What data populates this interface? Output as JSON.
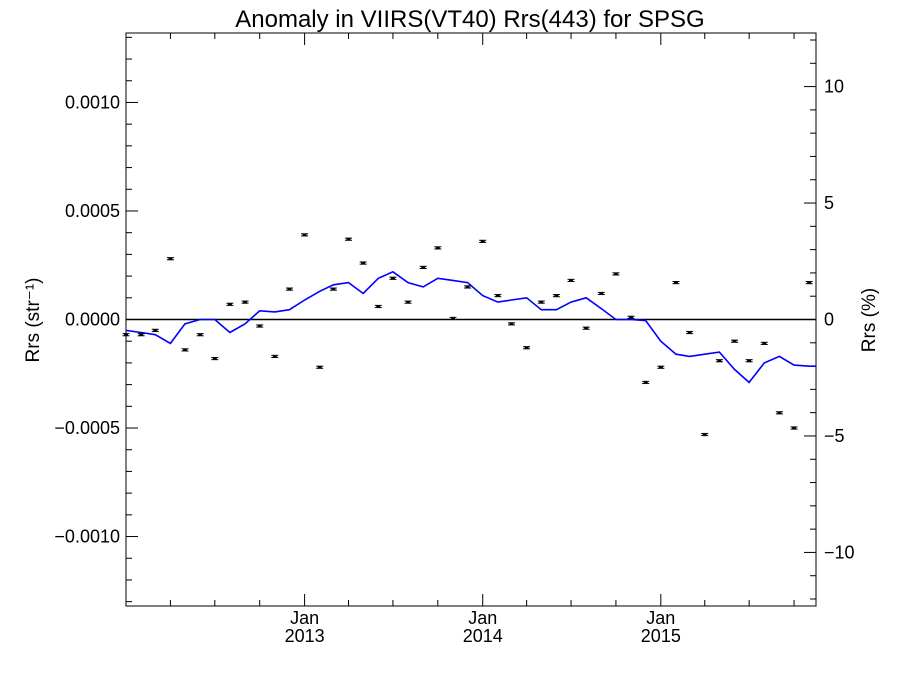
{
  "chart_data": {
    "type": "line",
    "title": "Anomaly in VIIRS(VT40) Rrs(443) for SPSG",
    "ylabel_left": "Rrs (str⁻¹)",
    "ylabel_right": "Rrs (%)",
    "x_ticks": [
      {
        "date": "2013-01-01",
        "top": "Jan",
        "bottom": "2013"
      },
      {
        "date": "2014-01-01",
        "top": "Jan",
        "bottom": "2014"
      },
      {
        "date": "2015-01-01",
        "top": "Jan",
        "bottom": "2015"
      }
    ],
    "x_range": [
      "2012-01-01",
      "2015-11-15"
    ],
    "ylim_left": [
      -0.00132,
      0.00132
    ],
    "y_ticks_left": [
      {
        "value": 0.001,
        "label": "0.0010"
      },
      {
        "value": 0.0005,
        "label": "0.0005"
      },
      {
        "value": 0.0,
        "label": "0.0000"
      },
      {
        "value": -0.0005,
        "label": "−0.0005"
      },
      {
        "value": -0.001,
        "label": "−0.0010"
      }
    ],
    "ylim_right": [
      -12.3,
      12.3
    ],
    "y_ticks_right": [
      {
        "value": 10,
        "label": "10"
      },
      {
        "value": 5,
        "label": "5"
      },
      {
        "value": 0,
        "label": "0"
      },
      {
        "value": -5,
        "label": "−5"
      },
      {
        "value": -10,
        "label": "−10"
      }
    ],
    "zero_line": true,
    "grid": false,
    "series": [
      {
        "kind": "line",
        "color": "#0000ff",
        "points": [
          [
            "2012-01-01",
            -5e-05
          ],
          [
            "2012-02-01",
            -6e-05
          ],
          [
            "2012-03-01",
            -7e-05
          ],
          [
            "2012-04-01",
            -0.00011
          ],
          [
            "2012-05-01",
            -2e-05
          ],
          [
            "2012-06-01",
            0.0
          ],
          [
            "2012-07-01",
            0.0
          ],
          [
            "2012-08-01",
            -6e-05
          ],
          [
            "2012-09-01",
            -2e-05
          ],
          [
            "2012-10-01",
            4e-05
          ],
          [
            "2012-11-01",
            3.5e-05
          ],
          [
            "2012-12-01",
            4.5e-05
          ],
          [
            "2013-01-01",
            9e-05
          ],
          [
            "2013-02-01",
            0.00013
          ],
          [
            "2013-03-01",
            0.00016
          ],
          [
            "2013-04-01",
            0.00017
          ],
          [
            "2013-05-01",
            0.00012
          ],
          [
            "2013-06-01",
            0.00019
          ],
          [
            "2013-07-01",
            0.00022
          ],
          [
            "2013-08-01",
            0.00017
          ],
          [
            "2013-09-01",
            0.00015
          ],
          [
            "2013-10-01",
            0.00019
          ],
          [
            "2013-11-01",
            0.00018
          ],
          [
            "2013-12-01",
            0.00017
          ],
          [
            "2014-01-01",
            0.00011
          ],
          [
            "2014-02-01",
            8e-05
          ],
          [
            "2014-03-01",
            9e-05
          ],
          [
            "2014-04-01",
            0.0001
          ],
          [
            "2014-05-01",
            4.5e-05
          ],
          [
            "2014-06-01",
            4.5e-05
          ],
          [
            "2014-07-01",
            8e-05
          ],
          [
            "2014-08-01",
            0.0001
          ],
          [
            "2014-09-01",
            5e-05
          ],
          [
            "2014-10-01",
            0.0
          ],
          [
            "2014-11-01",
            0.0
          ],
          [
            "2014-12-01",
            -5e-06
          ],
          [
            "2015-01-01",
            -0.0001
          ],
          [
            "2015-02-01",
            -0.00016
          ],
          [
            "2015-03-01",
            -0.00017
          ],
          [
            "2015-04-01",
            -0.00016
          ],
          [
            "2015-05-01",
            -0.00015
          ],
          [
            "2015-06-01",
            -0.00023
          ],
          [
            "2015-07-01",
            -0.00029
          ],
          [
            "2015-08-01",
            -0.0002
          ],
          [
            "2015-09-01",
            -0.00017
          ],
          [
            "2015-10-01",
            -0.00021
          ],
          [
            "2015-11-01",
            -0.000215
          ],
          [
            "2015-11-15",
            -0.000215
          ]
        ]
      },
      {
        "kind": "points_with_error",
        "color": "#000000",
        "error": 5e-06,
        "points": [
          [
            "2012-01-01",
            -7e-05
          ],
          [
            "2012-02-01",
            -7e-05
          ],
          [
            "2012-03-01",
            -5e-05
          ],
          [
            "2012-04-01",
            0.00028
          ],
          [
            "2012-05-01",
            -0.00014
          ],
          [
            "2012-06-01",
            -7e-05
          ],
          [
            "2012-07-01",
            -0.00018
          ],
          [
            "2012-08-01",
            7e-05
          ],
          [
            "2012-09-01",
            8e-05
          ],
          [
            "2012-10-01",
            -3e-05
          ],
          [
            "2012-11-01",
            -0.00017
          ],
          [
            "2012-12-01",
            0.00014
          ],
          [
            "2013-01-01",
            0.00039
          ],
          [
            "2013-02-01",
            -0.00022
          ],
          [
            "2013-03-01",
            0.00014
          ],
          [
            "2013-04-01",
            0.00037
          ],
          [
            "2013-05-01",
            0.00026
          ],
          [
            "2013-06-01",
            6e-05
          ],
          [
            "2013-07-01",
            0.00019
          ],
          [
            "2013-08-01",
            8e-05
          ],
          [
            "2013-09-01",
            0.00024
          ],
          [
            "2013-10-01",
            0.00033
          ],
          [
            "2013-11-01",
            5e-06
          ],
          [
            "2013-12-01",
            0.00015
          ],
          [
            "2014-01-01",
            0.00036
          ],
          [
            "2014-02-01",
            0.00011
          ],
          [
            "2014-03-01",
            -2e-05
          ],
          [
            "2014-04-01",
            -0.00013
          ],
          [
            "2014-05-01",
            8e-05
          ],
          [
            "2014-06-01",
            0.00011
          ],
          [
            "2014-07-01",
            0.00018
          ],
          [
            "2014-08-01",
            -4e-05
          ],
          [
            "2014-09-01",
            0.00012
          ],
          [
            "2014-10-01",
            0.00021
          ],
          [
            "2014-11-01",
            1e-05
          ],
          [
            "2014-12-01",
            -0.00029
          ],
          [
            "2015-01-01",
            -0.00022
          ],
          [
            "2015-02-01",
            0.00017
          ],
          [
            "2015-03-01",
            -6e-05
          ],
          [
            "2015-04-01",
            -0.00053
          ],
          [
            "2015-05-01",
            -0.00019
          ],
          [
            "2015-06-01",
            -0.0001
          ],
          [
            "2015-07-01",
            -0.00019
          ],
          [
            "2015-08-01",
            -0.00011
          ],
          [
            "2015-09-01",
            -0.00043
          ],
          [
            "2015-10-01",
            -0.0005
          ],
          [
            "2015-11-01",
            0.00017
          ]
        ]
      }
    ]
  }
}
